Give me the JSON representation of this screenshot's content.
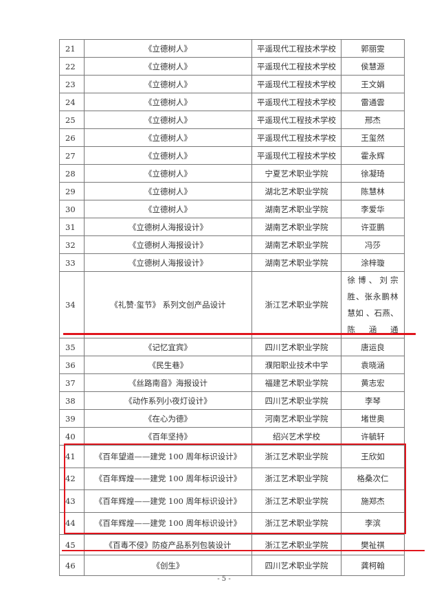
{
  "rows": [
    {
      "no": "21",
      "title": "《立德树人》",
      "school": "平遥现代工程技术学校",
      "author": "郭丽雯"
    },
    {
      "no": "22",
      "title": "《立德树人》",
      "school": "平遥现代工程技术学校",
      "author": "侯慧源"
    },
    {
      "no": "23",
      "title": "《立德树人》",
      "school": "平遥现代工程技术学校",
      "author": "王文娟"
    },
    {
      "no": "24",
      "title": "《立德树人》",
      "school": "平遥现代工程技术学校",
      "author": "雷通雲"
    },
    {
      "no": "25",
      "title": "《立德树人》",
      "school": "平遥现代工程技术学校",
      "author": "邢杰"
    },
    {
      "no": "26",
      "title": "《立德树人》",
      "school": "平遥现代工程技术学校",
      "author": "王玺然"
    },
    {
      "no": "27",
      "title": "《立德树人》",
      "school": "平遥现代工程技术学校",
      "author": "霍永辉"
    },
    {
      "no": "28",
      "title": "《立德树人》",
      "school": "宁夏艺术职业学院",
      "author": "徐凝琦"
    },
    {
      "no": "29",
      "title": "《立德树人》",
      "school": "湖北艺术职业学院",
      "author": "陈慧林"
    },
    {
      "no": "30",
      "title": "《立德树人》",
      "school": "湖南艺术职业学院",
      "author": "李爱华"
    },
    {
      "no": "31",
      "title": "《立德树人海报设计》",
      "school": "湖南艺术职业学院",
      "author": "许亚鹏"
    },
    {
      "no": "32",
      "title": "《立德树人海报设计》",
      "school": "湖南艺术职业学院",
      "author": "冯莎"
    },
    {
      "no": "33",
      "title": "《立德树人海报设计》",
      "school": "湖南艺术职业学院",
      "author": "涂梓璇"
    },
    {
      "no": "34",
      "title": "《礼赞·玺节》 系列文创产品设计",
      "school": "浙江艺术职业学院",
      "author": "徐博、刘宗胜、张永鹏林慧如 、石燕、陈涵通"
    },
    {
      "no": "35",
      "title": "《记忆宜宾》",
      "school": "四川艺术职业学院",
      "author": "唐运良"
    },
    {
      "no": "36",
      "title": "《民生巷》",
      "school": "濮阳职业技术中学",
      "author": "袁晓涵"
    },
    {
      "no": "37",
      "title": "《丝路南音》海报设计",
      "school": "福建艺术职业学院",
      "author": "黄志宏"
    },
    {
      "no": "38",
      "title": "《动作系列小夜灯设计》",
      "school": "四川艺术职业学院",
      "author": "李琴"
    },
    {
      "no": "39",
      "title": "《在心为德》",
      "school": "河南艺术职业学院",
      "author": "堵世奥"
    },
    {
      "no": "40",
      "title": "《百年坚持》",
      "school": "绍兴艺术学校",
      "author": "许毓轩"
    },
    {
      "no": "41",
      "title": "《百年望道——建党 100 周年标识设计》",
      "school": "浙江艺术职业学院",
      "author": "王欣如"
    },
    {
      "no": "42",
      "title": "《百年辉煌——建党 100 周年标识设计》",
      "school": "浙江艺术职业学院",
      "author": "格桑次仁"
    },
    {
      "no": "43",
      "title": "《百年辉煌——建党 100 周年标识设计》",
      "school": "浙江艺术职业学院",
      "author": "施郑杰"
    },
    {
      "no": "44",
      "title": "《百年辉煌——建党 100 周年标识设计》",
      "school": "浙江艺术职业学院",
      "author": "李滨"
    },
    {
      "no": "45",
      "title": "《百毒不侵》防疫产品系列包装设计",
      "school": "浙江艺术职业学院",
      "author": "樊祉祺"
    },
    {
      "no": "46",
      "title": "《创生》",
      "school": "四川艺术职业学院",
      "author": "龚柯翰"
    }
  ],
  "page_number": "- 5 -",
  "annotation_color": "#e0141c"
}
